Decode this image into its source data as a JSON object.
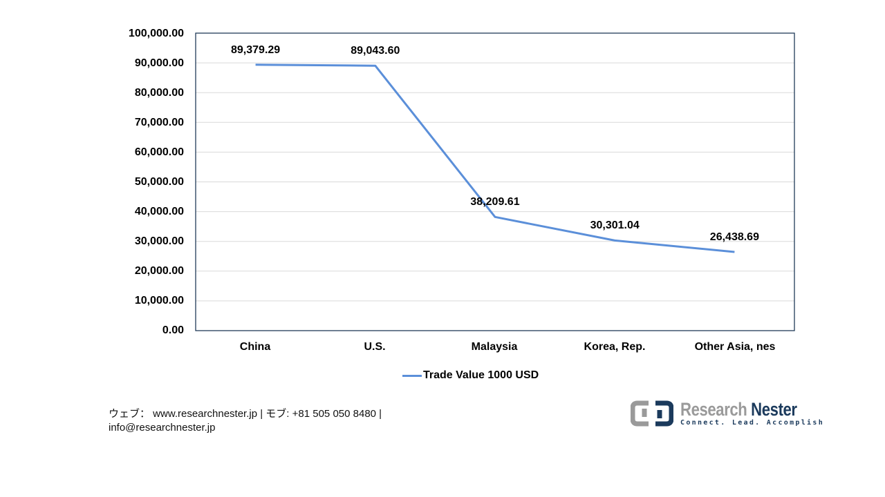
{
  "chart_data": {
    "type": "line",
    "title": "",
    "xlabel": "",
    "ylabel": "",
    "categories": [
      "China",
      "U.S.",
      "Malaysia",
      "Korea, Rep.",
      "Other Asia, nes"
    ],
    "series": [
      {
        "name": "Trade Value 1000 USD",
        "color": "#5b8fd9",
        "values": [
          89379.29,
          89043.6,
          38209.61,
          30301.04,
          26438.69
        ],
        "labels": [
          "89,379.29",
          "89,043.60",
          "38,209.61",
          "30,301.04",
          "26,438.69"
        ]
      }
    ],
    "ylim": [
      0,
      100000
    ],
    "yticks": [
      0,
      10000,
      20000,
      30000,
      40000,
      50000,
      60000,
      70000,
      80000,
      90000,
      100000
    ],
    "ytick_labels": [
      "0.00",
      "10,000.00",
      "20,000.00",
      "30,000.00",
      "40,000.00",
      "50,000.00",
      "60,000.00",
      "70,000.00",
      "80,000.00",
      "90,000.00",
      "100,000.00"
    ],
    "grid": true,
    "legend_position": "bottom"
  },
  "legend": {
    "label": "Trade Value 1000 USD"
  },
  "footer": {
    "line1": "ウェブ：  www.researchnester.jp  | モブ: +81 505 050 8480 |",
    "line2": "info@researchnester.jp"
  },
  "logo": {
    "word1": "Research",
    "word2": "Nester",
    "tagline": "Connect. Lead. Accomplish"
  },
  "colors": {
    "line": "#5b8fd9",
    "frame": "#1f3a57",
    "grid": "#d9d9d9",
    "logo_gray": "#9a9a9a",
    "logo_navy": "#1b3a5c"
  }
}
